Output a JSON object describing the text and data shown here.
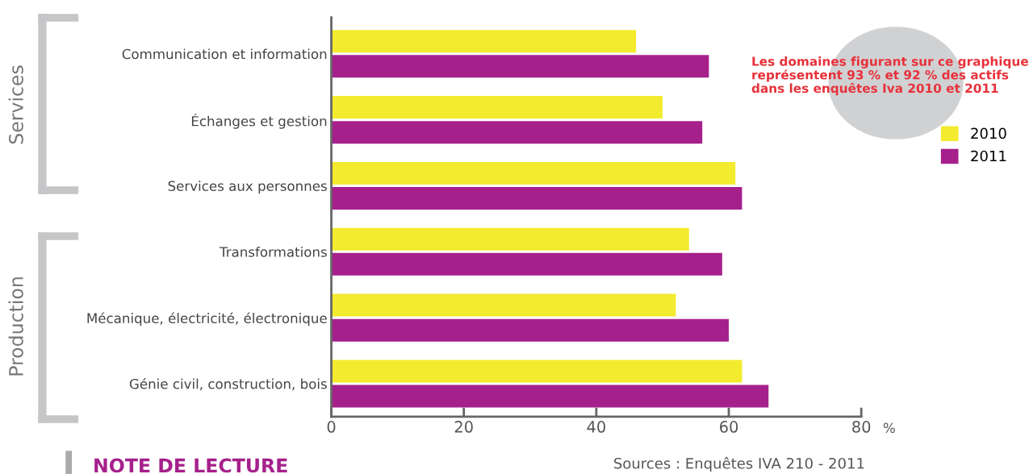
{
  "chart_data": {
    "type": "bar",
    "orientation": "horizontal",
    "categories": [
      "Communication et information",
      "Échanges et gestion",
      "Services aux personnes",
      "Transformations",
      "Mécanique, électricité, électronique",
      "Génie civil, construction, bois"
    ],
    "series": [
      {
        "name": "2010",
        "color": "#f2eb2e",
        "values": [
          46,
          50,
          61,
          54,
          52,
          62
        ]
      },
      {
        "name": "2011",
        "color": "#a6208c",
        "values": [
          57,
          56,
          62,
          59,
          60,
          66
        ]
      }
    ],
    "xlabel": "%",
    "xlim": [
      0,
      80
    ],
    "xticks": [
      0,
      20,
      40,
      60,
      80
    ],
    "grid": false,
    "legend": "right",
    "annotations": [
      "Les domaines figurant sur ce graphique\nreprésentent 93 % et 92 % des actifs\ndans les enquêtes Iva 2010 et 2011",
      "Sources : Enquêtes IVA 210 - 2011",
      "Services",
      "Production",
      "NOTE DE LECTURE"
    ]
  }
}
